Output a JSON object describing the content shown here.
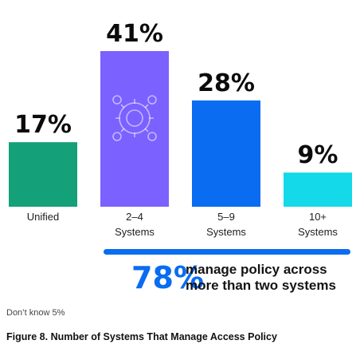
{
  "chart_data": {
    "type": "bar",
    "categories": [
      "Unified",
      "2–4 Systems",
      "5–9 Systems",
      "10+ Systems"
    ],
    "category_lines": [
      [
        "Unified"
      ],
      [
        "2–4",
        "Systems"
      ],
      [
        "5–9",
        "Systems"
      ],
      [
        "10+",
        "Systems"
      ]
    ],
    "values": [
      17,
      41,
      28,
      9
    ],
    "value_labels": [
      "17%",
      "41%",
      "28%",
      "9%"
    ],
    "colors": [
      "#14a079",
      "#7b61ff",
      "#0a6cf0",
      "#13d9e8"
    ],
    "ylim": [
      0,
      41
    ],
    "highlight_icon": "gear-network-icon",
    "highlight_index": 1
  },
  "callout": {
    "percent": "78%",
    "line1": "manage policy across",
    "line2": "more than two systems",
    "color": "#0a6cf0"
  },
  "footnote": "Don’t know 5%",
  "caption": "Figure 8. Number of Systems That Manage Access Policy"
}
